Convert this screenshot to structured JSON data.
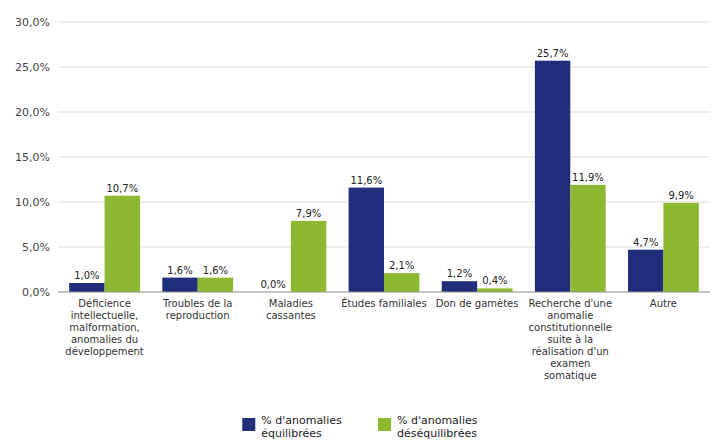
{
  "chart_data": {
    "type": "bar",
    "categories": [
      "Déficience\nintellectuelle,\nmalformation,\nanomalies du\ndéveloppement",
      "Troubles de la\nreproduction",
      "Maladies\ncassantes",
      "Études familiales",
      "Don de gamètes",
      "Recherche d'une\nanomalie\nconstitutionnelle\nsuite à la\nréalisation d'un\nexamen\nsomatique",
      "Autre"
    ],
    "series": [
      {
        "name": "% d'anomalies\néquilibrées",
        "color": "#1F2D7B",
        "values": [
          1.0,
          1.6,
          0.0,
          11.6,
          1.2,
          25.7,
          4.7
        ],
        "value_labels": [
          "1,0%",
          "1,6%",
          "0,0%",
          "11,6%",
          "1,2%",
          "25,7%",
          "4,7%"
        ]
      },
      {
        "name": "% d'anomalies\ndéséquilibrées",
        "color": "#8DB832",
        "values": [
          10.7,
          1.6,
          7.9,
          2.1,
          0.4,
          11.9,
          9.9
        ],
        "value_labels": [
          "10,7%",
          "1,6%",
          "7,9%",
          "2,1%",
          "0,4%",
          "11,9%",
          "9,9%"
        ]
      }
    ],
    "ylim": [
      0,
      30.0
    ],
    "yticks": [
      {
        "value": 0.0,
        "label": "0,0%"
      },
      {
        "value": 5.0,
        "label": "5,0%"
      },
      {
        "value": 10.0,
        "label": "10,0%"
      },
      {
        "value": 15.0,
        "label": "15,0%"
      },
      {
        "value": 20.0,
        "label": "20,0%"
      },
      {
        "value": 25.0,
        "label": "25,0%"
      },
      {
        "value": 30.0,
        "label": "30,0%"
      }
    ],
    "grid": true,
    "data_labels": true,
    "legend": "bottom"
  }
}
